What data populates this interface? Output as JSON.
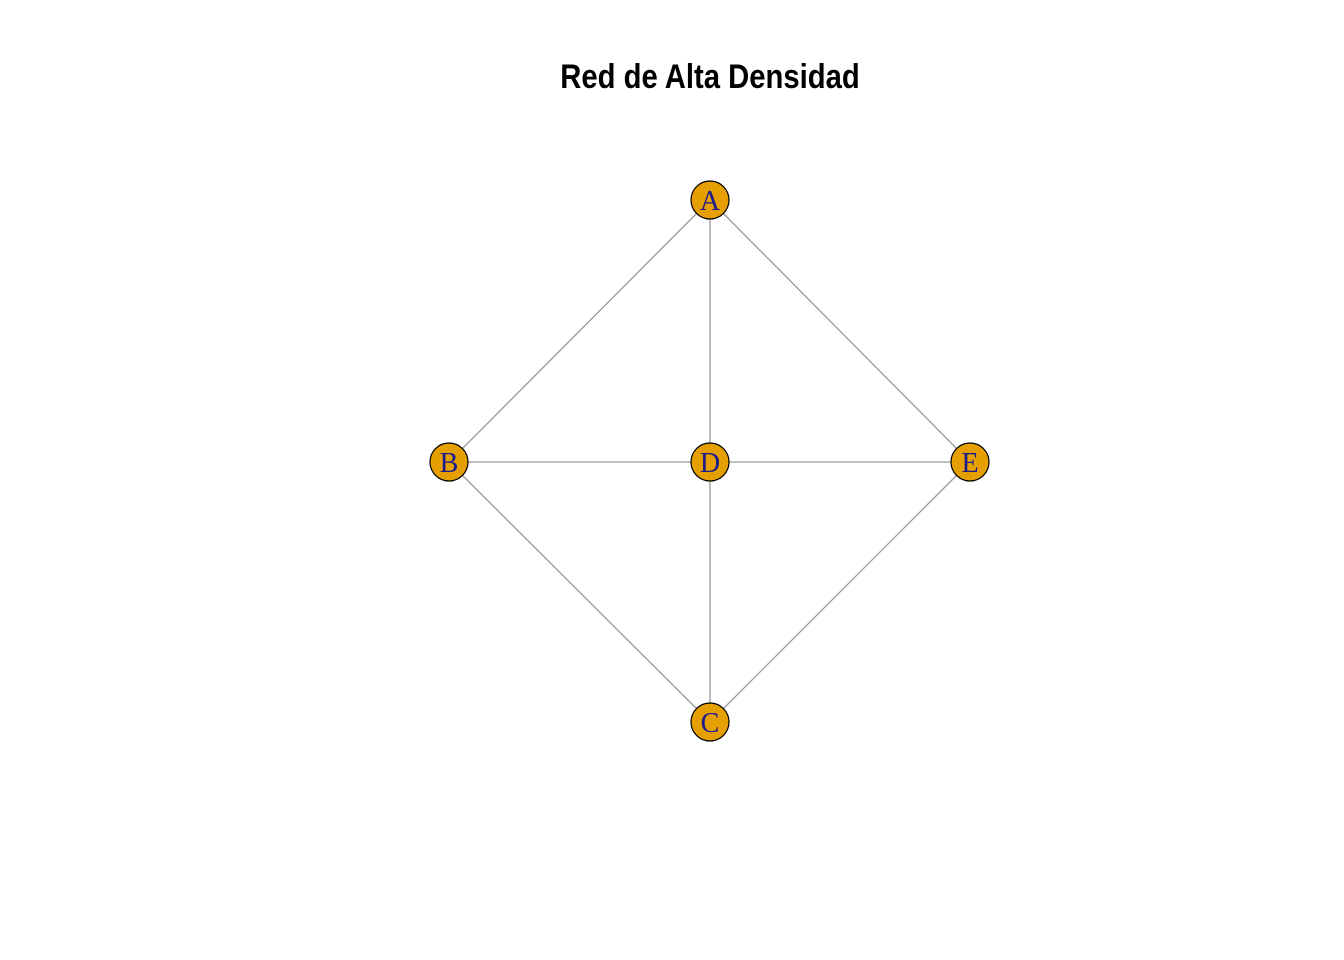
{
  "title": "Red de Alta Densidad",
  "colors": {
    "node_fill": "#E69F00",
    "node_stroke": "#000000",
    "label": "#1a1a8c",
    "edge": "#999999",
    "background": "#ffffff"
  },
  "nodes": [
    {
      "id": "A",
      "label": "A"
    },
    {
      "id": "B",
      "label": "B"
    },
    {
      "id": "C",
      "label": "C"
    },
    {
      "id": "D",
      "label": "D"
    },
    {
      "id": "E",
      "label": "E"
    }
  ],
  "edges": [
    {
      "from": "A",
      "to": "B"
    },
    {
      "from": "A",
      "to": "D"
    },
    {
      "from": "A",
      "to": "E"
    },
    {
      "from": "B",
      "to": "D"
    },
    {
      "from": "B",
      "to": "C"
    },
    {
      "from": "D",
      "to": "E"
    },
    {
      "from": "D",
      "to": "C"
    },
    {
      "from": "E",
      "to": "C"
    }
  ]
}
